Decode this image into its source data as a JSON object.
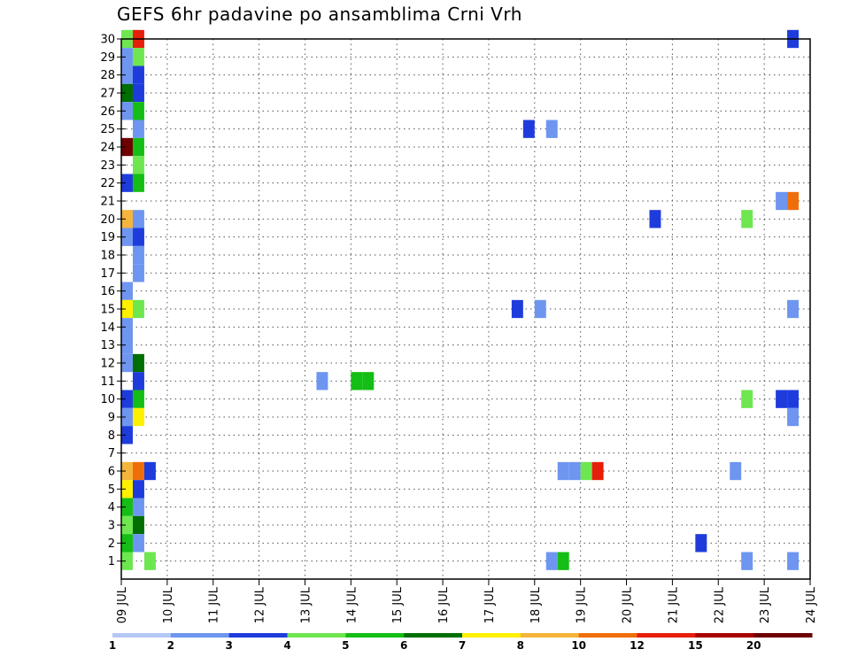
{
  "chart_data": {
    "type": "heatmap",
    "title": "GEFS 6hr padavine po ansamblima Crni Vrh",
    "xlabel": "",
    "ylabel": "",
    "x_tick_labels": [
      "09 JUL",
      "10 JUL",
      "11 JUL",
      "12 JUL",
      "13 JUL",
      "14 JUL",
      "15 JUL",
      "16 JUL",
      "17 JUL",
      "18 JUL",
      "19 JUL",
      "20 JUL",
      "21 JUL",
      "22 JUL",
      "23 JUL",
      "24 JUL"
    ],
    "xlim": [
      0,
      15
    ],
    "ylim": [
      0,
      30
    ],
    "y_ticks": [
      1,
      2,
      3,
      4,
      5,
      6,
      7,
      8,
      9,
      10,
      11,
      12,
      13,
      14,
      15,
      16,
      17,
      18,
      19,
      20,
      21,
      22,
      23,
      24,
      25,
      26,
      27,
      28,
      29,
      30
    ],
    "grid": true,
    "time_step_days": 0.25,
    "levels": [
      1,
      2,
      3,
      4,
      5,
      6,
      7,
      8,
      10,
      12,
      15,
      20
    ],
    "colors": [
      "#b4c8f5",
      "#6e96f0",
      "#1e3cdc",
      "#6ee650",
      "#14be14",
      "#006e00",
      "#fff000",
      "#f5b43c",
      "#f06e0a",
      "#e61e0a",
      "#aa0000",
      "#6e0000"
    ],
    "cells": [
      {
        "member": 30,
        "t": 0.25,
        "bin": 3
      },
      {
        "member": 30,
        "t": 0.5,
        "bin": 9
      },
      {
        "member": 30,
        "t": 14.75,
        "bin": 2
      },
      {
        "member": 29,
        "t": 0.25,
        "bin": 1
      },
      {
        "member": 29,
        "t": 0.5,
        "bin": 3
      },
      {
        "member": 28,
        "t": 0.25,
        "bin": 1
      },
      {
        "member": 28,
        "t": 0.5,
        "bin": 2
      },
      {
        "member": 27,
        "t": 0.25,
        "bin": 5
      },
      {
        "member": 27,
        "t": 0.5,
        "bin": 2
      },
      {
        "member": 26,
        "t": 0.25,
        "bin": 1
      },
      {
        "member": 26,
        "t": 0.5,
        "bin": 4
      },
      {
        "member": 25,
        "t": 0.5,
        "bin": 1
      },
      {
        "member": 25,
        "t": 9.0,
        "bin": 2
      },
      {
        "member": 25,
        "t": 9.5,
        "bin": 1
      },
      {
        "member": 24,
        "t": 0.25,
        "bin": 11
      },
      {
        "member": 24,
        "t": 0.5,
        "bin": 4
      },
      {
        "member": 23,
        "t": 0.5,
        "bin": 3
      },
      {
        "member": 22,
        "t": 0.25,
        "bin": 2
      },
      {
        "member": 22,
        "t": 0.5,
        "bin": 4
      },
      {
        "member": 21,
        "t": 14.5,
        "bin": 1
      },
      {
        "member": 21,
        "t": 14.75,
        "bin": 8
      },
      {
        "member": 20,
        "t": 0.25,
        "bin": 7
      },
      {
        "member": 20,
        "t": 0.5,
        "bin": 1
      },
      {
        "member": 20,
        "t": 11.75,
        "bin": 2
      },
      {
        "member": 20,
        "t": 13.75,
        "bin": 3
      },
      {
        "member": 19,
        "t": 0.25,
        "bin": 1
      },
      {
        "member": 19,
        "t": 0.5,
        "bin": 2
      },
      {
        "member": 18,
        "t": 0.5,
        "bin": 1
      },
      {
        "member": 17,
        "t": 0.5,
        "bin": 1
      },
      {
        "member": 16,
        "t": 0.25,
        "bin": 1
      },
      {
        "member": 15,
        "t": 0.25,
        "bin": 6
      },
      {
        "member": 15,
        "t": 0.5,
        "bin": 3
      },
      {
        "member": 15,
        "t": 8.75,
        "bin": 2
      },
      {
        "member": 15,
        "t": 9.25,
        "bin": 1
      },
      {
        "member": 15,
        "t": 14.75,
        "bin": 1
      },
      {
        "member": 14,
        "t": 0.25,
        "bin": 1
      },
      {
        "member": 13,
        "t": 0.25,
        "bin": 1
      },
      {
        "member": 12,
        "t": 0.25,
        "bin": 1
      },
      {
        "member": 12,
        "t": 0.5,
        "bin": 5
      },
      {
        "member": 11,
        "t": 0.5,
        "bin": 2
      },
      {
        "member": 11,
        "t": 4.5,
        "bin": 1
      },
      {
        "member": 11,
        "t": 5.25,
        "bin": 4
      },
      {
        "member": 11,
        "t": 5.5,
        "bin": 4
      },
      {
        "member": 10,
        "t": 0.25,
        "bin": 2
      },
      {
        "member": 10,
        "t": 0.5,
        "bin": 4
      },
      {
        "member": 10,
        "t": 13.75,
        "bin": 3
      },
      {
        "member": 10,
        "t": 14.5,
        "bin": 2
      },
      {
        "member": 10,
        "t": 14.75,
        "bin": 2
      },
      {
        "member": 9,
        "t": 0.25,
        "bin": 1
      },
      {
        "member": 9,
        "t": 0.5,
        "bin": 6
      },
      {
        "member": 9,
        "t": 14.75,
        "bin": 1
      },
      {
        "member": 8,
        "t": 0.25,
        "bin": 2
      },
      {
        "member": 6,
        "t": 0.25,
        "bin": 7
      },
      {
        "member": 6,
        "t": 0.5,
        "bin": 8
      },
      {
        "member": 6,
        "t": 0.75,
        "bin": 2
      },
      {
        "member": 6,
        "t": 9.75,
        "bin": 1
      },
      {
        "member": 6,
        "t": 10.0,
        "bin": 1
      },
      {
        "member": 6,
        "t": 10.25,
        "bin": 3
      },
      {
        "member": 6,
        "t": 10.5,
        "bin": 9
      },
      {
        "member": 6,
        "t": 13.5,
        "bin": 1
      },
      {
        "member": 5,
        "t": 0.25,
        "bin": 6
      },
      {
        "member": 5,
        "t": 0.5,
        "bin": 2
      },
      {
        "member": 4,
        "t": 0.25,
        "bin": 4
      },
      {
        "member": 4,
        "t": 0.5,
        "bin": 1
      },
      {
        "member": 3,
        "t": 0.25,
        "bin": 3
      },
      {
        "member": 3,
        "t": 0.5,
        "bin": 5
      },
      {
        "member": 2,
        "t": 0.25,
        "bin": 4
      },
      {
        "member": 2,
        "t": 0.5,
        "bin": 1
      },
      {
        "member": 2,
        "t": 12.75,
        "bin": 2
      },
      {
        "member": 1,
        "t": 0.25,
        "bin": 3
      },
      {
        "member": 1,
        "t": 0.75,
        "bin": 3
      },
      {
        "member": 1,
        "t": 9.5,
        "bin": 1
      },
      {
        "member": 1,
        "t": 9.75,
        "bin": 4
      },
      {
        "member": 1,
        "t": 13.75,
        "bin": 1
      },
      {
        "member": 1,
        "t": 14.75,
        "bin": 1
      }
    ]
  }
}
